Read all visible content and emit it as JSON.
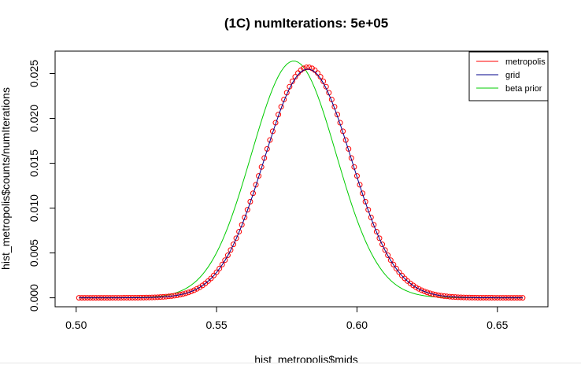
{
  "chart_data": {
    "type": "line",
    "title": "(1C) numIterations:  5e+05",
    "xlabel": "hist_metropolis$mids",
    "ylabel": "hist_metropolis$counts/numIterations",
    "xlim": [
      0.4925,
      0.668
    ],
    "ylim": [
      -0.001,
      0.0275
    ],
    "xticks": [
      0.5,
      0.55,
      0.6,
      0.65
    ],
    "xtick_labels": [
      "0.50",
      "0.55",
      "0.60",
      "0.65"
    ],
    "yticks": [
      0.0,
      0.005,
      0.01,
      0.015,
      0.02,
      0.025
    ],
    "ytick_labels": [
      "0.000",
      "0.005",
      "0.010",
      "0.015",
      "0.020",
      "0.025"
    ],
    "legend_position": "top-right",
    "legend": [
      {
        "label": "metropolis",
        "color": "#ff0000"
      },
      {
        "label": "grid",
        "color": "#00008b"
      },
      {
        "label": "beta prior",
        "color": "#00cc00"
      }
    ],
    "x_range": [
      0.501,
      0.659
    ],
    "x_step": 0.001,
    "series": [
      {
        "name": "metropolis",
        "style": "points",
        "color": "#ff0000",
        "distribution": "gaussian",
        "peak": 0.0257,
        "center": 0.5825,
        "sd": 0.0155
      },
      {
        "name": "grid",
        "style": "line",
        "color": "#00008b",
        "distribution": "gaussian",
        "peak": 0.0255,
        "center": 0.5825,
        "sd": 0.0155
      },
      {
        "name": "beta prior",
        "style": "line",
        "color": "#00cc00",
        "distribution": "gaussian",
        "peak": 0.0264,
        "center": 0.5775,
        "sd": 0.0151
      }
    ]
  }
}
